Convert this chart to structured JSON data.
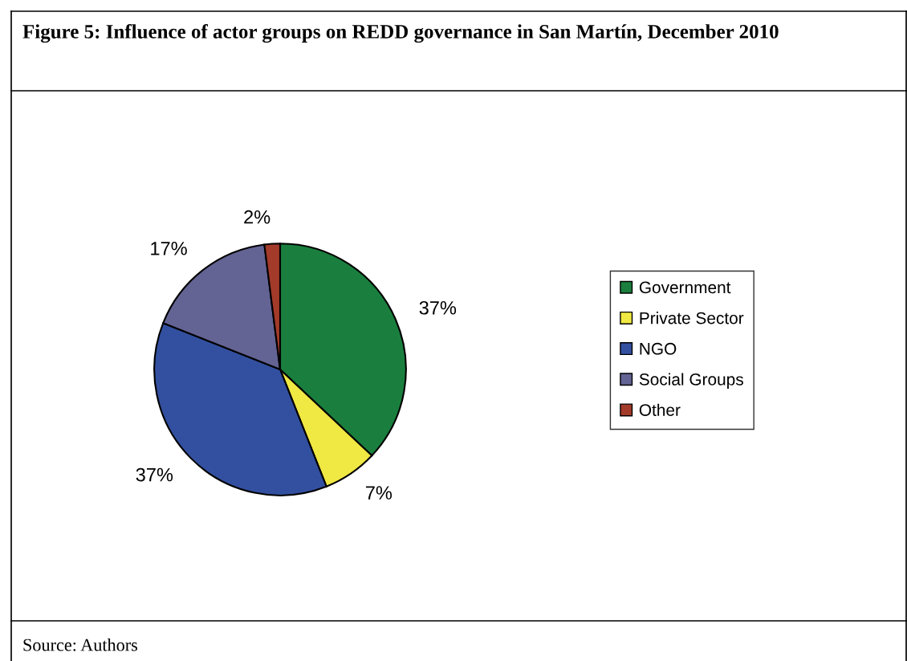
{
  "chart_data": {
    "type": "pie",
    "title": "Figure 5: Influence of actor groups on REDD governance in San Martín, December 2010",
    "categories": [
      "Government",
      "Private Sector",
      "NGO",
      "Social Groups",
      "Other"
    ],
    "values": [
      37,
      7,
      37,
      17,
      2
    ],
    "colors": [
      "#1a7f3e",
      "#f0e843",
      "#3350a0",
      "#636394",
      "#a33a2a"
    ],
    "value_labels": [
      "37%",
      "7%",
      "37%",
      "17%",
      "2%"
    ],
    "legend": "right",
    "annotations": [
      "Source: Authors"
    ]
  }
}
